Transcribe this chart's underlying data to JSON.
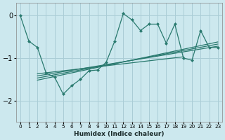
{
  "xlabel": "Humidex (Indice chaleur)",
  "bg_color": "#cce8ee",
  "grid_color": "#aacdd6",
  "line_color": "#2a7a6f",
  "xlim": [
    -0.5,
    23.5
  ],
  "ylim": [
    -2.5,
    0.3
  ],
  "yticks": [
    0,
    -1,
    -2
  ],
  "xticks": [
    0,
    1,
    2,
    3,
    4,
    5,
    6,
    7,
    8,
    9,
    10,
    11,
    12,
    13,
    14,
    15,
    16,
    17,
    18,
    19,
    20,
    21,
    22,
    23
  ],
  "main_x": [
    0,
    1,
    2,
    3,
    4,
    5,
    6,
    7,
    8,
    9,
    10,
    11,
    12,
    13,
    14,
    15,
    16,
    17,
    18,
    19,
    20,
    21,
    22,
    23
  ],
  "main_y": [
    0.0,
    -0.6,
    -0.75,
    -1.35,
    -1.45,
    -1.85,
    -1.65,
    -1.5,
    -1.3,
    -1.28,
    -1.1,
    -0.6,
    0.05,
    -0.1,
    -0.35,
    -0.2,
    -0.2,
    -0.65,
    -0.2,
    -1.0,
    -1.05,
    -0.35,
    -0.75,
    -0.75
  ],
  "trend_lines": [
    {
      "x": [
        2,
        23
      ],
      "y": [
        -1.52,
        -0.62
      ]
    },
    {
      "x": [
        2,
        23
      ],
      "y": [
        -1.47,
        -0.67
      ]
    },
    {
      "x": [
        2,
        23
      ],
      "y": [
        -1.42,
        -0.72
      ]
    },
    {
      "x": [
        2,
        19
      ],
      "y": [
        -1.37,
        -0.97
      ]
    }
  ]
}
